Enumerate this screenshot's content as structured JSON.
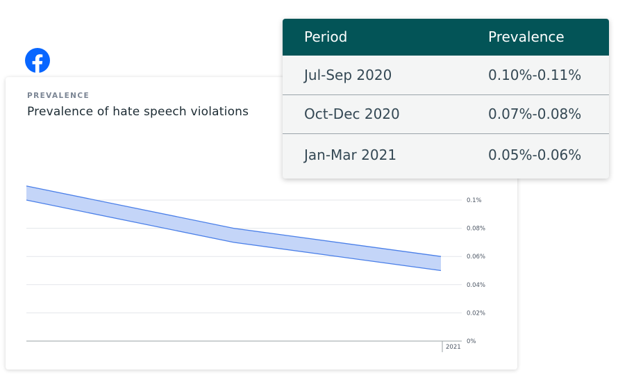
{
  "logo": {
    "icon": "facebook-logo-icon",
    "color": "#0866ff"
  },
  "card": {
    "eyebrow": "PREVALENCE",
    "title": "Prevalence of hate speech violations"
  },
  "chart_data": {
    "type": "area",
    "title": "Prevalence of hate speech violations",
    "x": [
      "Jul-Sep 2020",
      "Oct-Dec 2020",
      "Jan-Mar 2021"
    ],
    "series": [
      {
        "lower": [
          0.1,
          0.07,
          0.05
        ],
        "upper": [
          0.11,
          0.08,
          0.06
        ]
      }
    ],
    "ylim": [
      0,
      0.11
    ],
    "yticks": [
      "0%",
      "0.02%",
      "0.04%",
      "0.06%",
      "0.08%",
      "0.1%"
    ],
    "ytick_values": [
      0,
      0.02,
      0.04,
      0.06,
      0.08,
      0.1
    ],
    "xticks": [
      "2021"
    ],
    "grid": true,
    "colors": {
      "fill": "#c4d5f8",
      "line": "#4a7fe8",
      "grid": "#e3e6ea"
    }
  },
  "table": {
    "headers": [
      "Period",
      "Prevalence"
    ],
    "rows": [
      [
        "Jul-Sep 2020",
        "0.10%-0.11%"
      ],
      [
        "Oct-Dec 2020",
        "0.07%-0.08%"
      ],
      [
        "Jan-Mar 2021",
        "0.05%-0.06%"
      ]
    ],
    "header_color": "#035457"
  }
}
